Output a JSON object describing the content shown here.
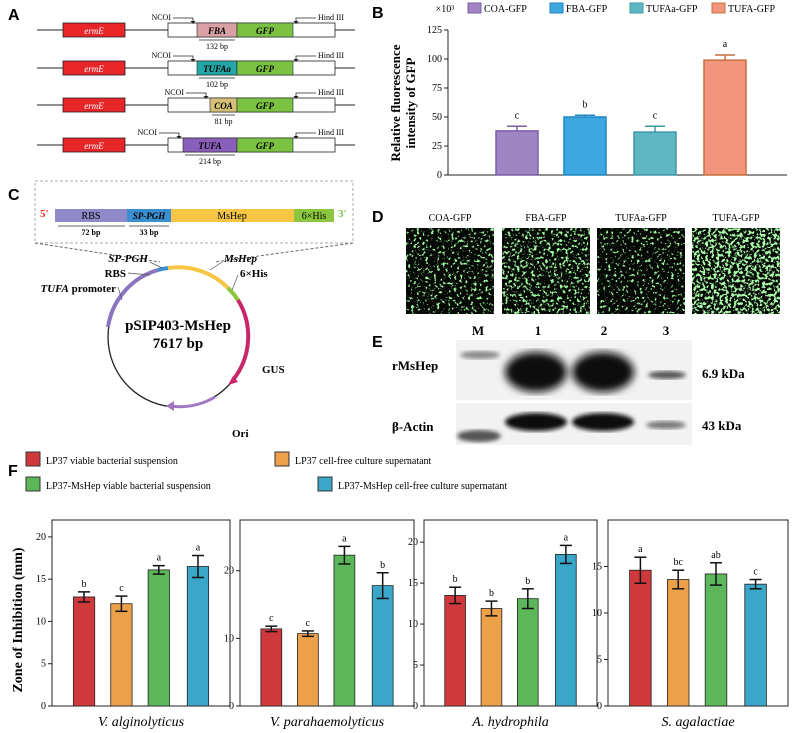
{
  "panels": {
    "A": "A",
    "B": "B",
    "C": "C",
    "D": "D",
    "E": "E",
    "F": "F"
  },
  "colors": {
    "ermE": "#e8262a",
    "FBA": "#d9a0a5",
    "TUFAa": "#24a6a6",
    "COA": "#d6c078",
    "TUFA": "#8a5fbc",
    "GFP": "#7cc242",
    "COA-GFP": "#9f85c4",
    "FBA-GFP": "#3da8e0",
    "TUFAa-GFP": "#5fb7c4",
    "TUFA-GFP": "#f1967c",
    "F1": "#d0393c",
    "F2": "#eda04a",
    "F3": "#5bb75a",
    "F4": "#3aa6c8"
  },
  "panelA": {
    "ncoi": "NCOI",
    "hind": "Hind III",
    "ermE": "ermE",
    "gfp": "GFP",
    "constructs": [
      {
        "promoter": "FBA",
        "size": "132 bp"
      },
      {
        "promoter": "TUFAa",
        "size": "102 bp"
      },
      {
        "promoter": "COA",
        "size": "81 bp"
      },
      {
        "promoter": "TUFA",
        "size": "214 bp"
      }
    ]
  },
  "panelB": {
    "legend": [
      "COA-GFP",
      "FBA-GFP",
      "TUFAa-GFP",
      "TUFA-GFP"
    ],
    "multiplier": "×10³",
    "ylabel_line1": "Relative fluorescence",
    "ylabel_line2": "intensity of GFP"
  },
  "chart_data": [
    {
      "type": "bar",
      "categories": [
        "COA-GFP",
        "FBA-GFP",
        "TUFAa-GFP",
        "TUFA-GFP"
      ],
      "values": [
        38,
        50,
        37,
        99
      ],
      "errors": [
        4,
        1.5,
        5,
        4.5
      ],
      "letters": [
        "c",
        "b",
        "c",
        "a"
      ],
      "ylim": [
        0,
        125
      ],
      "yticks": [
        0,
        25,
        50,
        75,
        100,
        125
      ],
      "ylabel": "Relative fluorescence intensity of GFP",
      "legend": "top"
    },
    {
      "type": "bar",
      "title": "V. alginolyticus",
      "categories": [
        "LP37 viable bacterial suspension",
        "LP37 cell-free culture supernatant",
        "LP37-MsHep viable bacterial suspension",
        "LP37-MsHep cell-free culture supernatant"
      ],
      "values": [
        12.9,
        12.1,
        16.1,
        16.5
      ],
      "errors": [
        0.6,
        0.9,
        0.5,
        1.3
      ],
      "letters": [
        "b",
        "c",
        "a",
        "a"
      ],
      "ylim": [
        0,
        22
      ],
      "yticks": [
        0,
        5,
        10,
        15,
        20
      ],
      "ylabel": "Zone of Inhibition (mm)"
    },
    {
      "type": "bar",
      "title": "V. parahaemolyticus",
      "categories": [
        "LP37 viable bacterial suspension",
        "LP37 cell-free culture supernatant",
        "LP37-MsHep viable bacterial suspension",
        "LP37-MsHep cell-free culture supernatant"
      ],
      "values": [
        11.4,
        10.7,
        22.3,
        17.8
      ],
      "errors": [
        0.4,
        0.4,
        1.3,
        1.9
      ],
      "letters": [
        "c",
        "c",
        "a",
        "b"
      ],
      "ylim": [
        0,
        27.5
      ],
      "yticks": [
        0,
        10,
        20
      ]
    },
    {
      "type": "bar",
      "title": "A. hydrophila",
      "categories": [
        "LP37 viable bacterial suspension",
        "LP37 cell-free culture supernatant",
        "LP37-MsHep viable bacterial suspension",
        "LP37-MsHep cell-free culture supernatant"
      ],
      "values": [
        13.5,
        11.9,
        13.1,
        18.5
      ],
      "errors": [
        1.0,
        0.9,
        1.2,
        1.1
      ],
      "letters": [
        "b",
        "b",
        "b",
        "a"
      ],
      "ylim": [
        0,
        22.7
      ],
      "yticks": [
        0,
        5,
        10,
        15,
        20
      ]
    },
    {
      "type": "bar",
      "title": "S. agalactiae",
      "categories": [
        "LP37 viable bacterial suspension",
        "LP37 cell-free culture supernatant",
        "LP37-MsHep viable bacterial suspension",
        "LP37-MsHep cell-free culture supernatant"
      ],
      "values": [
        14.6,
        13.6,
        14.2,
        13.1
      ],
      "errors": [
        1.4,
        1.0,
        1.2,
        0.5
      ],
      "letters": [
        "a",
        "bc",
        "ab",
        "c"
      ],
      "ylim": [
        0,
        20
      ],
      "yticks": [
        0,
        5,
        10,
        15
      ]
    }
  ],
  "panelC": {
    "five": "5'",
    "three": "3'",
    "segments": [
      "RBS",
      "SP-PGH",
      "MsHep",
      "6×His"
    ],
    "sizes": [
      "72 bp",
      "33 bp"
    ],
    "plasmid_name": "pSIP403-MsHep",
    "plasmid_size": "7617 bp",
    "labels": {
      "sppgh": "SP-PGH",
      "mshep": "MsHep",
      "rbs": "RBS",
      "his": "6×His",
      "tufa": "TUFA",
      "promoter": " promoter",
      "gus": "GUS",
      "ori": "Ori"
    }
  },
  "panelD": {
    "labels": [
      "COA-GFP",
      "FBA-GFP",
      "TUFAa-GFP",
      "TUFA-GFP"
    ]
  },
  "panelE": {
    "lanes": [
      "M",
      "1",
      "2",
      "3"
    ],
    "row1": "rMsHep",
    "row2": "β-Actin",
    "size1": "6.9 kDa",
    "size2": "43 kDa"
  },
  "panelF": {
    "legend": [
      "LP37 viable bacterial suspension",
      "LP37 cell-free culture supernatant",
      "LP37-MsHep viable bacterial suspension",
      "LP37-MsHep cell-free culture supernatant"
    ],
    "ylabel": "Zone of Inhibition (mm)"
  }
}
